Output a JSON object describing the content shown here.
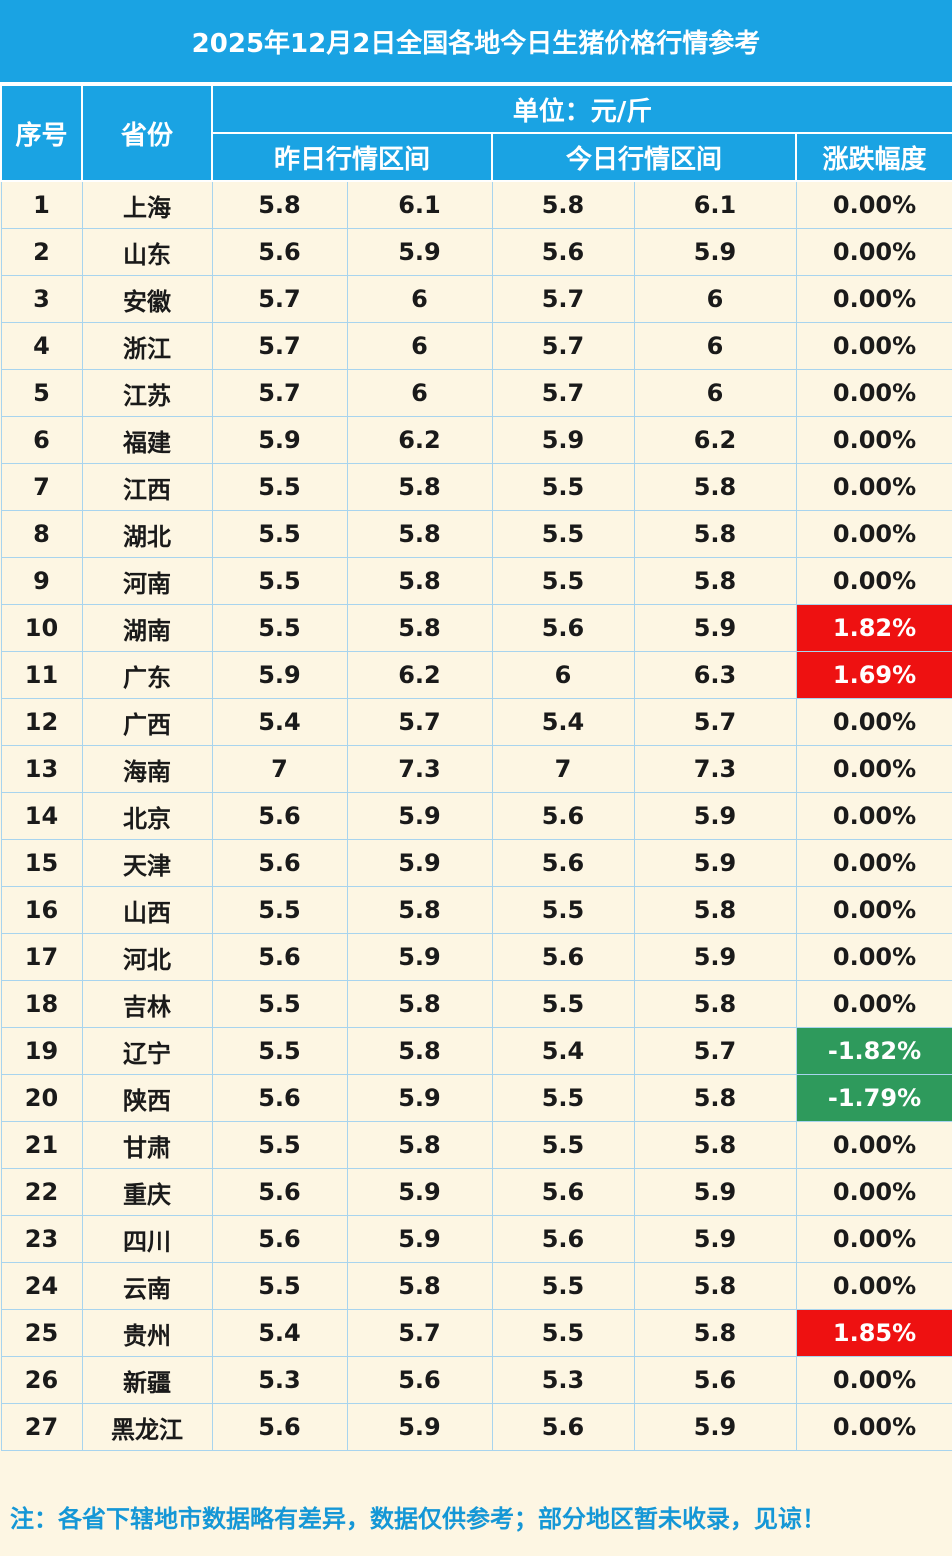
{
  "title": "2025年12月2日全国各地今日生猪价格行情参考",
  "headers": {
    "index": "序号",
    "province": "省份",
    "unit": "单位：元/斤",
    "yesterday": "昨日行情区间",
    "today": "今日行情区间",
    "change": "涨跌幅度"
  },
  "rows": [
    {
      "no": "1",
      "prov": "上海",
      "y_low": "5.8",
      "y_high": "6.1",
      "t_low": "5.8",
      "t_high": "6.1",
      "chg": "0.00%",
      "dir": "flat"
    },
    {
      "no": "2",
      "prov": "山东",
      "y_low": "5.6",
      "y_high": "5.9",
      "t_low": "5.6",
      "t_high": "5.9",
      "chg": "0.00%",
      "dir": "flat"
    },
    {
      "no": "3",
      "prov": "安徽",
      "y_low": "5.7",
      "y_high": "6",
      "t_low": "5.7",
      "t_high": "6",
      "chg": "0.00%",
      "dir": "flat"
    },
    {
      "no": "4",
      "prov": "浙江",
      "y_low": "5.7",
      "y_high": "6",
      "t_low": "5.7",
      "t_high": "6",
      "chg": "0.00%",
      "dir": "flat"
    },
    {
      "no": "5",
      "prov": "江苏",
      "y_low": "5.7",
      "y_high": "6",
      "t_low": "5.7",
      "t_high": "6",
      "chg": "0.00%",
      "dir": "flat"
    },
    {
      "no": "6",
      "prov": "福建",
      "y_low": "5.9",
      "y_high": "6.2",
      "t_low": "5.9",
      "t_high": "6.2",
      "chg": "0.00%",
      "dir": "flat"
    },
    {
      "no": "7",
      "prov": "江西",
      "y_low": "5.5",
      "y_high": "5.8",
      "t_low": "5.5",
      "t_high": "5.8",
      "chg": "0.00%",
      "dir": "flat"
    },
    {
      "no": "8",
      "prov": "湖北",
      "y_low": "5.5",
      "y_high": "5.8",
      "t_low": "5.5",
      "t_high": "5.8",
      "chg": "0.00%",
      "dir": "flat"
    },
    {
      "no": "9",
      "prov": "河南",
      "y_low": "5.5",
      "y_high": "5.8",
      "t_low": "5.5",
      "t_high": "5.8",
      "chg": "0.00%",
      "dir": "flat"
    },
    {
      "no": "10",
      "prov": "湖南",
      "y_low": "5.5",
      "y_high": "5.8",
      "t_low": "5.6",
      "t_high": "5.9",
      "chg": "1.82%",
      "dir": "up"
    },
    {
      "no": "11",
      "prov": "广东",
      "y_low": "5.9",
      "y_high": "6.2",
      "t_low": "6",
      "t_high": "6.3",
      "chg": "1.69%",
      "dir": "up"
    },
    {
      "no": "12",
      "prov": "广西",
      "y_low": "5.4",
      "y_high": "5.7",
      "t_low": "5.4",
      "t_high": "5.7",
      "chg": "0.00%",
      "dir": "flat"
    },
    {
      "no": "13",
      "prov": "海南",
      "y_low": "7",
      "y_high": "7.3",
      "t_low": "7",
      "t_high": "7.3",
      "chg": "0.00%",
      "dir": "flat"
    },
    {
      "no": "14",
      "prov": "北京",
      "y_low": "5.6",
      "y_high": "5.9",
      "t_low": "5.6",
      "t_high": "5.9",
      "chg": "0.00%",
      "dir": "flat"
    },
    {
      "no": "15",
      "prov": "天津",
      "y_low": "5.6",
      "y_high": "5.9",
      "t_low": "5.6",
      "t_high": "5.9",
      "chg": "0.00%",
      "dir": "flat"
    },
    {
      "no": "16",
      "prov": "山西",
      "y_low": "5.5",
      "y_high": "5.8",
      "t_low": "5.5",
      "t_high": "5.8",
      "chg": "0.00%",
      "dir": "flat"
    },
    {
      "no": "17",
      "prov": "河北",
      "y_low": "5.6",
      "y_high": "5.9",
      "t_low": "5.6",
      "t_high": "5.9",
      "chg": "0.00%",
      "dir": "flat"
    },
    {
      "no": "18",
      "prov": "吉林",
      "y_low": "5.5",
      "y_high": "5.8",
      "t_low": "5.5",
      "t_high": "5.8",
      "chg": "0.00%",
      "dir": "flat"
    },
    {
      "no": "19",
      "prov": "辽宁",
      "y_low": "5.5",
      "y_high": "5.8",
      "t_low": "5.4",
      "t_high": "5.7",
      "chg": "-1.82%",
      "dir": "down"
    },
    {
      "no": "20",
      "prov": "陕西",
      "y_low": "5.6",
      "y_high": "5.9",
      "t_low": "5.5",
      "t_high": "5.8",
      "chg": "-1.79%",
      "dir": "down"
    },
    {
      "no": "21",
      "prov": "甘肃",
      "y_low": "5.5",
      "y_high": "5.8",
      "t_low": "5.5",
      "t_high": "5.8",
      "chg": "0.00%",
      "dir": "flat"
    },
    {
      "no": "22",
      "prov": "重庆",
      "y_low": "5.6",
      "y_high": "5.9",
      "t_low": "5.6",
      "t_high": "5.9",
      "chg": "0.00%",
      "dir": "flat"
    },
    {
      "no": "23",
      "prov": "四川",
      "y_low": "5.6",
      "y_high": "5.9",
      "t_low": "5.6",
      "t_high": "5.9",
      "chg": "0.00%",
      "dir": "flat"
    },
    {
      "no": "24",
      "prov": "云南",
      "y_low": "5.5",
      "y_high": "5.8",
      "t_low": "5.5",
      "t_high": "5.8",
      "chg": "0.00%",
      "dir": "flat"
    },
    {
      "no": "25",
      "prov": "贵州",
      "y_low": "5.4",
      "y_high": "5.7",
      "t_low": "5.5",
      "t_high": "5.8",
      "chg": "1.85%",
      "dir": "up"
    },
    {
      "no": "26",
      "prov": "新疆",
      "y_low": "5.3",
      "y_high": "5.6",
      "t_low": "5.3",
      "t_high": "5.6",
      "chg": "0.00%",
      "dir": "flat"
    },
    {
      "no": "27",
      "prov": "黑龙江",
      "y_low": "5.6",
      "y_high": "5.9",
      "t_low": "5.6",
      "t_high": "5.9",
      "chg": "0.00%",
      "dir": "flat"
    }
  ],
  "note": "注：各省下辖地市数据略有差异，数据仅供参考；部分地区暂未收录，见谅！",
  "colors": {
    "header_blue": "#1aa3e3",
    "background": "#fdf6e3",
    "up_red": "#ee1111",
    "down_green": "#2e9a5c",
    "note_blue": "#1597d6"
  }
}
